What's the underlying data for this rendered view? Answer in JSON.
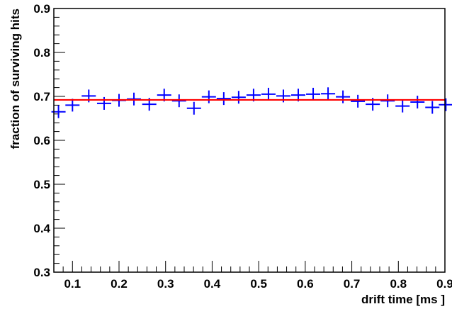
{
  "chart_data": {
    "type": "scatter",
    "title": "",
    "xlabel": "drift time [ms ]",
    "ylabel": "fraction of surviving hits",
    "xlim": [
      0.06,
      0.9
    ],
    "ylim": [
      0.3,
      0.9
    ],
    "x_ticks": [
      "0.1",
      "0.2",
      "0.3",
      "0.4",
      "0.5",
      "0.6",
      "0.7",
      "0.8",
      "0.9"
    ],
    "y_ticks": [
      "0.3",
      "0.4",
      "0.5",
      "0.6",
      "0.7",
      "0.8",
      "0.9"
    ],
    "grid": false,
    "series": [
      {
        "color": "#0000ff",
        "marker": "cross",
        "x": [
          0.07,
          0.1,
          0.135,
          0.168,
          0.2,
          0.232,
          0.265,
          0.297,
          0.329,
          0.361,
          0.393,
          0.425,
          0.457,
          0.489,
          0.521,
          0.553,
          0.585,
          0.617,
          0.649,
          0.681,
          0.713,
          0.745,
          0.777,
          0.809,
          0.841,
          0.873,
          0.902
        ],
        "y": [
          0.665,
          0.68,
          0.701,
          0.684,
          0.691,
          0.694,
          0.682,
          0.703,
          0.69,
          0.673,
          0.699,
          0.695,
          0.698,
          0.703,
          0.705,
          0.701,
          0.703,
          0.705,
          0.706,
          0.699,
          0.689,
          0.682,
          0.69,
          0.678,
          0.687,
          0.675,
          0.681
        ]
      }
    ],
    "fit_line": {
      "color": "#ff0000",
      "y": 0.692
    }
  }
}
